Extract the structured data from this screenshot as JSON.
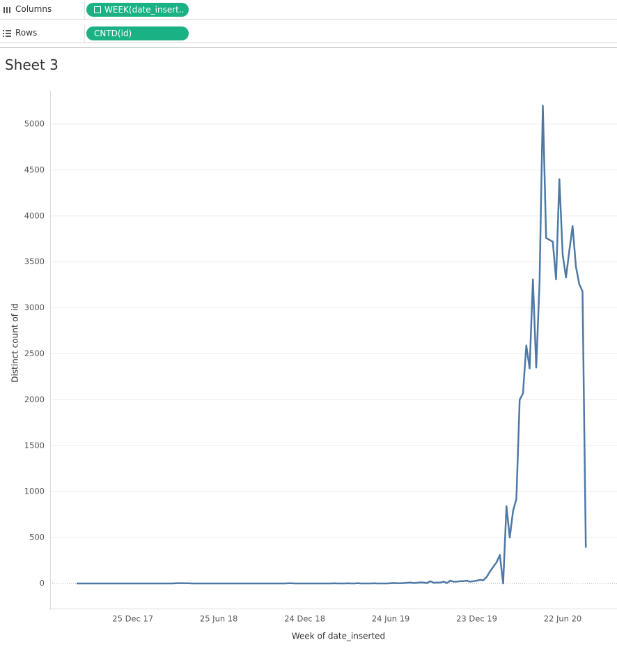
{
  "shelves": {
    "columns": {
      "label": "Columns",
      "pill": "WEEK(date_insert.."
    },
    "rows": {
      "label": "Rows",
      "pill": "CNTD(id)"
    }
  },
  "chart_data": {
    "type": "line",
    "title": "Sheet 3",
    "x_label": "Week of date_inserted",
    "y_label": "Distinct count of id",
    "x": [
      "2017-08-28",
      "2017-09-04",
      "2017-09-11",
      "2017-09-18",
      "2017-09-25",
      "2017-10-02",
      "2017-10-09",
      "2017-10-16",
      "2017-10-23",
      "2017-10-30",
      "2017-11-06",
      "2017-11-13",
      "2017-11-20",
      "2017-11-27",
      "2017-12-04",
      "2017-12-11",
      "2017-12-18",
      "2017-12-25",
      "2018-01-01",
      "2018-01-08",
      "2018-01-15",
      "2018-01-22",
      "2018-01-29",
      "2018-02-05",
      "2018-02-12",
      "2018-02-19",
      "2018-02-26",
      "2018-03-05",
      "2018-03-12",
      "2018-03-19",
      "2018-03-26",
      "2018-04-02",
      "2018-04-09",
      "2018-04-16",
      "2018-04-23",
      "2018-04-30",
      "2018-05-07",
      "2018-05-14",
      "2018-05-21",
      "2018-05-28",
      "2018-06-04",
      "2018-06-11",
      "2018-06-18",
      "2018-06-25",
      "2018-07-02",
      "2018-07-09",
      "2018-07-16",
      "2018-07-23",
      "2018-07-30",
      "2018-08-06",
      "2018-08-13",
      "2018-08-20",
      "2018-08-27",
      "2018-09-03",
      "2018-09-10",
      "2018-09-17",
      "2018-09-24",
      "2018-10-01",
      "2018-10-08",
      "2018-10-15",
      "2018-10-22",
      "2018-10-29",
      "2018-11-05",
      "2018-11-12",
      "2018-11-19",
      "2018-11-26",
      "2018-12-03",
      "2018-12-10",
      "2018-12-17",
      "2018-12-24",
      "2018-12-31",
      "2019-01-07",
      "2019-01-14",
      "2019-01-21",
      "2019-01-28",
      "2019-02-04",
      "2019-02-11",
      "2019-02-18",
      "2019-02-25",
      "2019-03-04",
      "2019-03-11",
      "2019-03-18",
      "2019-03-25",
      "2019-04-01",
      "2019-04-08",
      "2019-04-15",
      "2019-04-22",
      "2019-04-29",
      "2019-05-06",
      "2019-05-13",
      "2019-05-20",
      "2019-05-27",
      "2019-06-03",
      "2019-06-10",
      "2019-06-17",
      "2019-06-24",
      "2019-07-01",
      "2019-07-08",
      "2019-07-15",
      "2019-07-22",
      "2019-07-29",
      "2019-08-05",
      "2019-08-12",
      "2019-08-19",
      "2019-08-26",
      "2019-09-02",
      "2019-09-09",
      "2019-09-16",
      "2019-09-23",
      "2019-09-30",
      "2019-10-07",
      "2019-10-14",
      "2019-10-21",
      "2019-10-28",
      "2019-11-04",
      "2019-11-11",
      "2019-11-18",
      "2019-11-25",
      "2019-12-02",
      "2019-12-09",
      "2019-12-16",
      "2019-12-23",
      "2019-12-30",
      "2020-01-06",
      "2020-01-13",
      "2020-01-20",
      "2020-01-27",
      "2020-02-03",
      "2020-02-10",
      "2020-02-17",
      "2020-02-24",
      "2020-03-02",
      "2020-03-09",
      "2020-03-16",
      "2020-03-23",
      "2020-03-30",
      "2020-04-06",
      "2020-04-13",
      "2020-04-20",
      "2020-04-27",
      "2020-05-04",
      "2020-05-11",
      "2020-05-18",
      "2020-05-25",
      "2020-06-01",
      "2020-06-08",
      "2020-06-15",
      "2020-06-22",
      "2020-06-29",
      "2020-07-06",
      "2020-07-13",
      "2020-07-20",
      "2020-07-27",
      "2020-08-03",
      "2020-08-10"
    ],
    "series": [
      {
        "name": "CNTD(id)",
        "color": "#4e79a7",
        "values": [
          0,
          0,
          0,
          0,
          0,
          0,
          0,
          0,
          0,
          0,
          0,
          0,
          0,
          0,
          0,
          0,
          0,
          0,
          0,
          0,
          0,
          0,
          0,
          0,
          0,
          0,
          0,
          0,
          0,
          0,
          2,
          3,
          3,
          2,
          2,
          0,
          0,
          0,
          0,
          0,
          0,
          0,
          0,
          0,
          0,
          0,
          0,
          0,
          0,
          0,
          0,
          0,
          0,
          0,
          0,
          0,
          0,
          0,
          0,
          0,
          0,
          0,
          0,
          0,
          2,
          2,
          0,
          0,
          0,
          0,
          0,
          0,
          0,
          0,
          0,
          0,
          0,
          0,
          2,
          0,
          0,
          0,
          2,
          0,
          0,
          3,
          0,
          0,
          0,
          0,
          2,
          0,
          0,
          0,
          0,
          3,
          5,
          3,
          2,
          5,
          8,
          10,
          5,
          8,
          12,
          10,
          5,
          25,
          8,
          10,
          10,
          20,
          5,
          30,
          20,
          20,
          25,
          25,
          30,
          20,
          25,
          30,
          40,
          35,
          70,
          130,
          180,
          230,
          310,
          0,
          840,
          500,
          790,
          920,
          2000,
          2070,
          2590,
          2340,
          3310,
          2350,
          3270,
          5200,
          3760,
          3740,
          3720,
          3310,
          4400,
          3580,
          3330,
          3620,
          3890,
          3450,
          3260,
          3180,
          390
        ]
      }
    ],
    "xlim": [
      "2017-07-03",
      "2020-10-15"
    ],
    "xticks": [
      {
        "value": "2017-12-25",
        "label": "25 Dec 17"
      },
      {
        "value": "2018-06-25",
        "label": "25 Jun 18"
      },
      {
        "value": "2018-12-24",
        "label": "24 Dec 18"
      },
      {
        "value": "2019-06-24",
        "label": "24 Jun 19"
      },
      {
        "value": "2019-12-23",
        "label": "23 Dec 19"
      },
      {
        "value": "2020-06-22",
        "label": "22 Jun 20"
      }
    ],
    "ylim": [
      -273,
      5440
    ],
    "yticks": [
      0,
      500,
      1000,
      1500,
      2000,
      2500,
      3000,
      3500,
      4000,
      4500,
      5000
    ],
    "grid": true
  }
}
